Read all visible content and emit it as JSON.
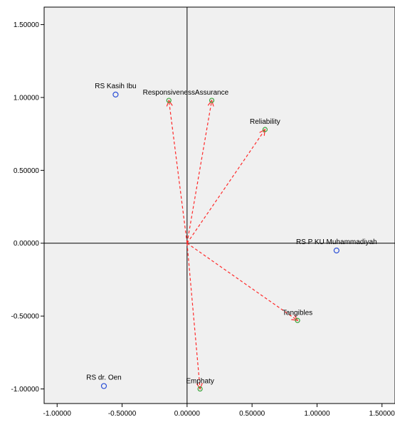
{
  "chart_data": {
    "type": "scatter",
    "title": "",
    "xlabel": "",
    "ylabel": "",
    "xlim": [
      -1.1,
      1.6
    ],
    "ylim": [
      -1.1,
      1.62
    ],
    "x_ticks": [
      -1.0,
      -0.5,
      0.0,
      0.5,
      1.0,
      1.5
    ],
    "y_ticks": [
      -1.0,
      -0.5,
      0.0,
      0.5,
      1.0,
      1.5
    ],
    "x_tick_labels": [
      "-1.00000",
      "-0.50000",
      "0.00000",
      "0.50000",
      "1.00000",
      "1.50000"
    ],
    "y_tick_labels": [
      "-1.00000",
      "-0.50000",
      "0.00000",
      "0.50000",
      "1.00000",
      "1.50000"
    ],
    "grid": false,
    "objects": [
      {
        "label": "RS Kasih Ibu",
        "x": -0.55,
        "y": 1.02
      },
      {
        "label": "RS P KU Muhammadiyah",
        "x": 1.15,
        "y": -0.05
      },
      {
        "label": "RS dr. Oen",
        "x": -0.64,
        "y": -0.98
      }
    ],
    "attributes": [
      {
        "label": "Responsiveness",
        "x": -0.14,
        "y": 0.98
      },
      {
        "label": "Assurance",
        "x": 0.19,
        "y": 0.98
      },
      {
        "label": "Reliability",
        "x": 0.6,
        "y": 0.78
      },
      {
        "label": "Tangibles",
        "x": 0.85,
        "y": -0.53
      },
      {
        "label": "Emphaty",
        "x": 0.1,
        "y": -1.0
      }
    ],
    "colors": {
      "plot_background": "#f0f0f0",
      "object_marker": "#2b4fd6",
      "attribute_marker": "#3aa33a",
      "arrow": "#ff2a2a"
    }
  }
}
